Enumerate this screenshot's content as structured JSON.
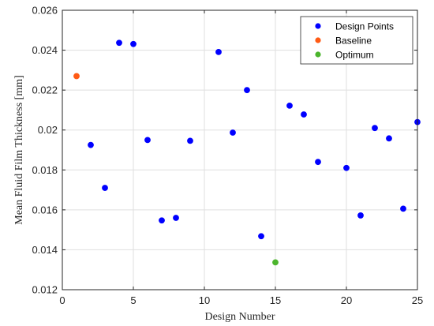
{
  "chart_data": {
    "type": "scatter",
    "title": "",
    "xlabel": "Design Number",
    "ylabel": "Mean Fluid Film Thickness [mm]",
    "xlim": [
      0,
      25
    ],
    "ylim": [
      0.012,
      0.026
    ],
    "xticks": [
      0,
      5,
      10,
      15,
      20,
      25
    ],
    "yticks": [
      0.012,
      0.014,
      0.016,
      0.018,
      0.02,
      0.022,
      0.024,
      0.026
    ],
    "ytick_labels": [
      "0.012",
      "0.014",
      "0.016",
      "0.018",
      "0.02",
      "0.022",
      "0.024",
      "0.026"
    ],
    "grid": true,
    "legend_position": "top-right",
    "series": [
      {
        "name": "Design Points",
        "color": "#0000ff",
        "points": [
          {
            "x": 2,
            "y": 0.01925
          },
          {
            "x": 3,
            "y": 0.0171
          },
          {
            "x": 4,
            "y": 0.02437
          },
          {
            "x": 5,
            "y": 0.02431
          },
          {
            "x": 6,
            "y": 0.0195
          },
          {
            "x": 7,
            "y": 0.01547
          },
          {
            "x": 8,
            "y": 0.0156
          },
          {
            "x": 9,
            "y": 0.01946
          },
          {
            "x": 11,
            "y": 0.02391
          },
          {
            "x": 12,
            "y": 0.01987
          },
          {
            "x": 13,
            "y": 0.022
          },
          {
            "x": 14,
            "y": 0.01468
          },
          {
            "x": 16,
            "y": 0.02122
          },
          {
            "x": 17,
            "y": 0.02078
          },
          {
            "x": 18,
            "y": 0.0184
          },
          {
            "x": 20,
            "y": 0.0181
          },
          {
            "x": 21,
            "y": 0.01572
          },
          {
            "x": 22,
            "y": 0.0201
          },
          {
            "x": 23,
            "y": 0.01958
          },
          {
            "x": 24,
            "y": 0.01606
          },
          {
            "x": 25,
            "y": 0.0204
          }
        ]
      },
      {
        "name": "Baseline",
        "color": "#ff5a14",
        "points": [
          {
            "x": 1,
            "y": 0.0227
          }
        ]
      },
      {
        "name": "Optimum",
        "color": "#4cb52d",
        "points": [
          {
            "x": 15,
            "y": 0.01337
          }
        ]
      }
    ]
  }
}
